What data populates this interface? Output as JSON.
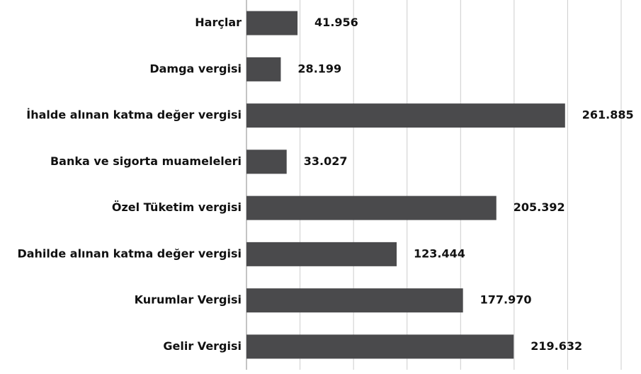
{
  "chart_data": {
    "type": "barh",
    "categories": [
      "Harçlar",
      "Damga vergisi",
      "İhalde alınan katma değer vergisi",
      "Banka ve sigorta muameleleri",
      "Özel Tüketim vergisi",
      "Dahilde alınan katma değer vergisi",
      "Kurumlar Vergisi",
      "Gelir Vergisi"
    ],
    "values": [
      41956,
      28199,
      261885,
      33027,
      205392,
      123444,
      177970,
      219632
    ],
    "value_labels": [
      "41.956",
      "28.199",
      "261.885",
      "33.027",
      "205.392",
      "123.444",
      "177.970",
      "219.632"
    ],
    "color": "#4a4a4c",
    "xlim": [
      0,
      308000
    ],
    "xticks": [
      0,
      44000,
      88000,
      132000,
      176000,
      220000,
      264000,
      308000
    ],
    "grid": true
  }
}
